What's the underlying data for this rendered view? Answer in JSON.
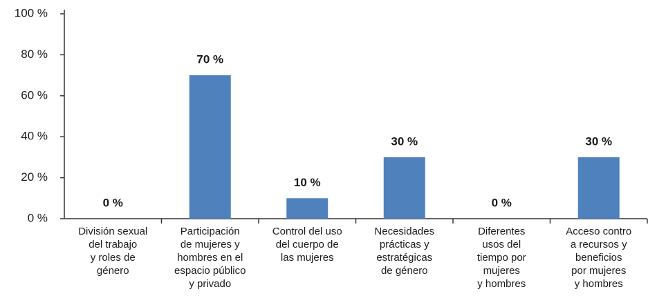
{
  "chart_data": {
    "type": "bar",
    "categories": [
      "División sexual\ndel trabajo\ny roles de\ngénero",
      "Participación\nde mujeres y\nhombres en el\nespacio público\ny privado",
      "Control del uso\ndel cuerpo de\nlas mujeres",
      "Necesidades\nprácticas y\nestratégicas\nde género",
      "Diferentes\nusos del\ntiempo por\nmujeres\ny hombres",
      "Acceso contro\na recursos y\nbeneficios\npor mujeres\ny hombres"
    ],
    "values": [
      0,
      70,
      10,
      30,
      0,
      30
    ],
    "value_labels": [
      "0 %",
      "70 %",
      "10 %",
      "30 %",
      "0 %",
      "30 %"
    ],
    "color": "#4f81bd",
    "ylim": [
      0,
      100
    ],
    "yticks": [
      {
        "value": 0,
        "label": "0 %"
      },
      {
        "value": 20,
        "label": "20 %"
      },
      {
        "value": 40,
        "label": "40 %"
      },
      {
        "value": 60,
        "label": "60 %"
      },
      {
        "value": 80,
        "label": "80 %"
      },
      {
        "value": 100,
        "label": "100 %"
      }
    ],
    "grid": false
  }
}
